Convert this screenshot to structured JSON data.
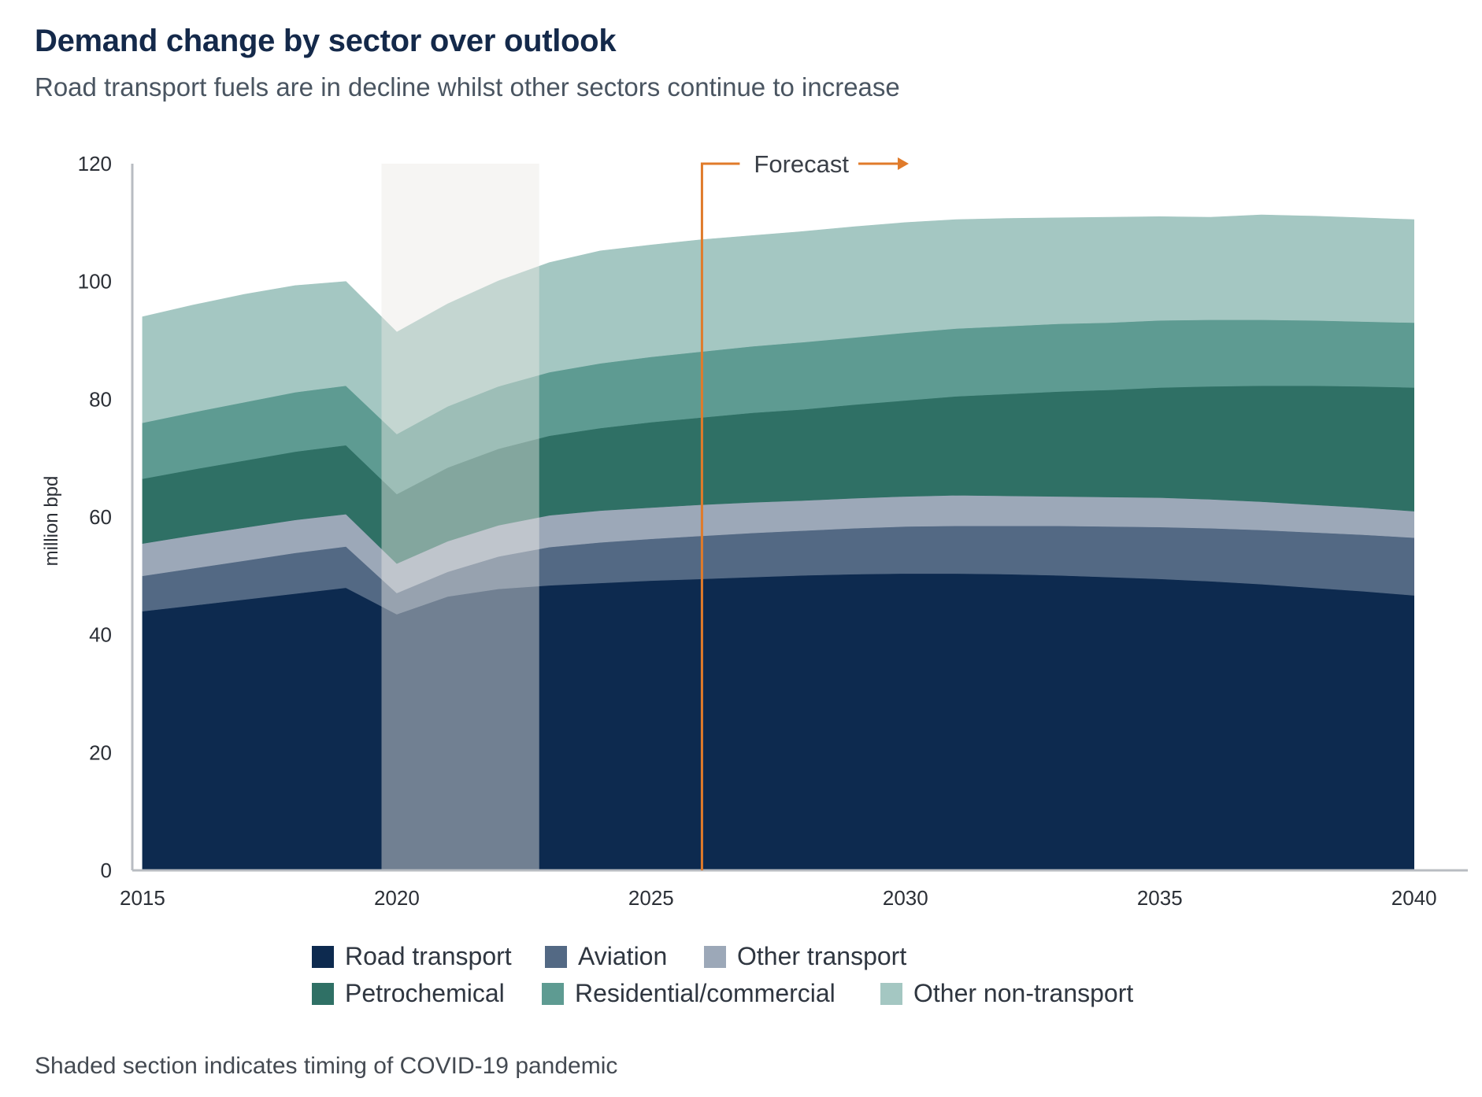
{
  "title": "Demand change by sector over outlook",
  "subtitle": "Road transport fuels are in decline whilst other sectors continue to increase",
  "footnote": "Shaded section indicates timing of COVID-19 pandemic",
  "forecast_label": "Forecast",
  "chart_data": {
    "type": "area",
    "stacked": true,
    "ylabel": "million bpd",
    "xlabel": "",
    "xlim": [
      2014.8,
      2040.5
    ],
    "ylim": [
      0,
      120
    ],
    "yticks": [
      0,
      20,
      40,
      60,
      80,
      100,
      120
    ],
    "xticks": [
      2015,
      2020,
      2025,
      2030,
      2035,
      2040
    ],
    "grid": false,
    "legend_position": "bottom",
    "forecast_start": 2026,
    "covid_shading": [
      2019.7,
      2022.8
    ],
    "x": [
      2015,
      2016,
      2017,
      2018,
      2019,
      2020,
      2021,
      2022,
      2023,
      2024,
      2025,
      2026,
      2027,
      2028,
      2029,
      2030,
      2031,
      2032,
      2033,
      2034,
      2035,
      2036,
      2037,
      2038,
      2039,
      2040
    ],
    "series": [
      {
        "name": "Road transport",
        "color": "#0d2a4f",
        "values": [
          44,
          45,
          46,
          47,
          48,
          43.5,
          46.5,
          47.8,
          48.4,
          48.8,
          49.2,
          49.5,
          49.8,
          50.1,
          50.3,
          50.4,
          50.4,
          50.3,
          50.1,
          49.8,
          49.5,
          49.1,
          48.6,
          48,
          47.4,
          46.7
        ]
      },
      {
        "name": "Aviation",
        "color": "#536984",
        "values": [
          6,
          6.3,
          6.6,
          6.9,
          7,
          3.6,
          4.2,
          5.5,
          6.5,
          6.9,
          7.1,
          7.3,
          7.5,
          7.6,
          7.8,
          8,
          8.1,
          8.2,
          8.4,
          8.6,
          8.8,
          9,
          9.2,
          9.4,
          9.6,
          9.8
        ]
      },
      {
        "name": "Other transport",
        "color": "#9ca8b8",
        "values": [
          5.5,
          5.6,
          5.6,
          5.6,
          5.5,
          5.0,
          5.2,
          5.3,
          5.4,
          5.4,
          5.3,
          5.3,
          5.2,
          5.1,
          5.1,
          5.1,
          5.2,
          5.1,
          5,
          5,
          5,
          4.9,
          4.8,
          4.7,
          4.6,
          4.5
        ]
      },
      {
        "name": "Petrochemical",
        "color": "#2f7065",
        "values": [
          11,
          11.2,
          11.4,
          11.6,
          11.7,
          11.8,
          12.5,
          13.0,
          13.5,
          14.0,
          14.5,
          14.8,
          15.2,
          15.5,
          15.9,
          16.3,
          16.8,
          17.3,
          17.8,
          18.2,
          18.7,
          19.2,
          19.7,
          20.2,
          20.6,
          21
        ]
      },
      {
        "name": "Residential/commercial",
        "color": "#5e9b92",
        "values": [
          9.5,
          9.7,
          9.9,
          10.1,
          10.1,
          10.2,
          10.4,
          10.6,
          10.8,
          11,
          11.1,
          11.2,
          11.3,
          11.4,
          11.4,
          11.5,
          11.5,
          11.5,
          11.5,
          11.4,
          11.4,
          11.3,
          11.2,
          11.1,
          11,
          11
        ]
      },
      {
        "name": "Other non-transport",
        "color": "#a4c7c2",
        "values": [
          18,
          18.2,
          18.3,
          18.1,
          17.7,
          17.3,
          17.4,
          17.9,
          18.6,
          19.1,
          19.0,
          19.0,
          18.8,
          18.8,
          18.8,
          18.7,
          18.5,
          18.3,
          18.0,
          17.9,
          17.6,
          17.4,
          17.8,
          17.7,
          17.6,
          17.5
        ]
      }
    ]
  }
}
